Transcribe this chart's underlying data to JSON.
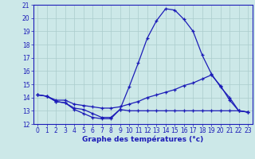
{
  "hours": [
    0,
    1,
    2,
    3,
    4,
    5,
    6,
    7,
    8,
    9,
    10,
    11,
    12,
    13,
    14,
    15,
    16,
    17,
    18,
    19,
    20,
    21,
    22,
    23
  ],
  "temp_curve": [
    14.2,
    14.1,
    13.7,
    13.6,
    13.1,
    12.8,
    12.5,
    12.4,
    12.4,
    13.1,
    14.8,
    16.6,
    18.5,
    19.8,
    20.7,
    20.6,
    19.9,
    19.0,
    17.2,
    15.8,
    14.8,
    14.0,
    13.0,
    12.9
  ],
  "temp_mid": [
    14.2,
    14.1,
    13.8,
    13.8,
    13.5,
    13.4,
    13.3,
    13.2,
    13.2,
    13.3,
    13.5,
    13.7,
    14.0,
    14.2,
    14.4,
    14.6,
    14.9,
    15.1,
    15.4,
    15.7,
    14.9,
    13.8,
    13.0,
    12.9
  ],
  "temp_flat": [
    14.2,
    14.1,
    13.7,
    13.6,
    13.2,
    13.1,
    12.8,
    12.5,
    12.5,
    13.1,
    13.0,
    13.0,
    13.0,
    13.0,
    13.0,
    13.0,
    13.0,
    13.0,
    13.0,
    13.0,
    13.0,
    13.0,
    13.0,
    12.9
  ],
  "line_color": "#1c1cb8",
  "bg_color": "#cce8e8",
  "grid_color": "#aacccc",
  "xlabel": "Graphe des températures (°c)",
  "ylim": [
    12,
    21
  ],
  "xlim_min": -0.5,
  "xlim_max": 23.5,
  "yticks": [
    12,
    13,
    14,
    15,
    16,
    17,
    18,
    19,
    20,
    21
  ],
  "xticks": [
    0,
    1,
    2,
    3,
    4,
    5,
    6,
    7,
    8,
    9,
    10,
    11,
    12,
    13,
    14,
    15,
    16,
    17,
    18,
    19,
    20,
    21,
    22,
    23
  ],
  "tick_fontsize": 5.5,
  "label_fontsize": 6.5
}
